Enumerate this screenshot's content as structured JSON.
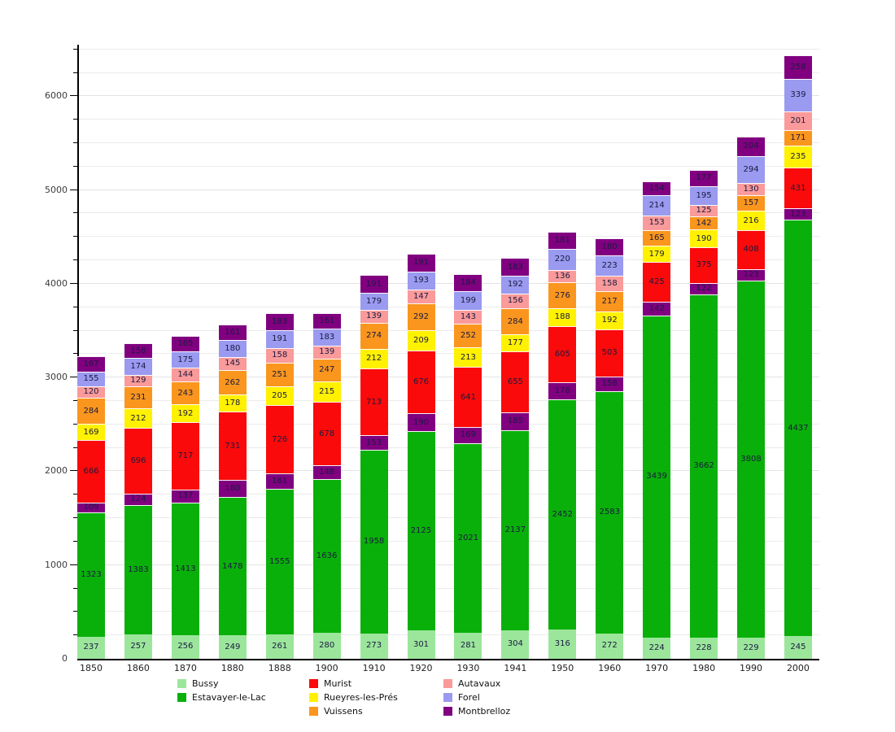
{
  "page": {
    "background": "#ffffff"
  },
  "chart_data": {
    "type": "bar",
    "stacked": true,
    "title": "",
    "xlabel": "",
    "ylabel": "",
    "grid": "horizontal",
    "categories": [
      "1850",
      "1860",
      "1870",
      "1880",
      "1888",
      "1900",
      "1910",
      "1920",
      "1930",
      "1941",
      "1950",
      "1960",
      "1970",
      "1980",
      "1990",
      "2000"
    ],
    "series": [
      {
        "name": "Bussy",
        "color": "#9CE69C",
        "values": [
          237,
          257,
          256,
          249,
          261,
          280,
          273,
          301,
          281,
          304,
          316,
          272,
          224,
          228,
          229,
          245
        ]
      },
      {
        "name": "Estavayer-le-Lac",
        "color": "#0AB00A",
        "values": [
          1323,
          1383,
          1413,
          1478,
          1555,
          1636,
          1958,
          2125,
          2021,
          2137,
          2452,
          2583,
          3439,
          3662,
          3808,
          4437
        ]
      },
      {
        "name": "(unlabeled)",
        "color": "#800080",
        "values": [
          109,
          124,
          137,
          180,
          161,
          148,
          153,
          190,
          169,
          185,
          178,
          158,
          142,
          122,
          123,
          123
        ]
      },
      {
        "name": "Murist",
        "color": "#FA0A0A",
        "values": [
          666,
          696,
          717,
          731,
          726,
          678,
          713,
          676,
          641,
          655,
          605,
          503,
          425,
          375,
          408,
          431
        ]
      },
      {
        "name": "Rueyres-les-Prés",
        "color": "#FFF100",
        "values": [
          169,
          212,
          192,
          178,
          205,
          215,
          212,
          209,
          213,
          177,
          188,
          192,
          179,
          190,
          216,
          235
        ]
      },
      {
        "name": "Vuissens",
        "color": "#FA961E",
        "values": [
          284,
          231,
          243,
          262,
          251,
          247,
          274,
          292,
          252,
          284,
          276,
          217,
          165,
          142,
          157,
          171
        ]
      },
      {
        "name": "Autavaux",
        "color": "#FA9A9A",
        "values": [
          120,
          129,
          144,
          145,
          158,
          139,
          139,
          147,
          143,
          156,
          136,
          158,
          153,
          125,
          130,
          201
        ]
      },
      {
        "name": "Forel",
        "color": "#9A9AF0",
        "values": [
          155,
          174,
          175,
          180,
          191,
          183,
          179,
          193,
          199,
          192,
          220,
          223,
          214,
          195,
          294,
          339
        ]
      },
      {
        "name": "Montbrelloz",
        "color": "#800080",
        "values": [
          167,
          158,
          165,
          161,
          183,
          161,
          191,
          191,
          184,
          183,
          181,
          180,
          154,
          177,
          204,
          258
        ]
      }
    ],
    "value_labels_shown": true,
    "value_label_color": "#1a1a40",
    "y_axis": {
      "min": 0,
      "max": 6550,
      "major_tick_interval": 1000,
      "minor_tick_interval": 250,
      "tick_labels": [
        "0",
        "1000",
        "2000",
        "3000",
        "4000",
        "5000",
        "6000"
      ]
    },
    "legend": {
      "position": "bottom",
      "columns": [
        [
          {
            "label": "Bussy",
            "color": "#9CE69C"
          },
          {
            "label": "Estavayer-le-Lac",
            "color": "#0AB00A"
          }
        ],
        [
          {
            "label": "Murist",
            "color": "#FA0A0A"
          },
          {
            "label": "Rueyres-les-Prés",
            "color": "#FFF100"
          },
          {
            "label": "Vuissens",
            "color": "#FA961E"
          }
        ],
        [
          {
            "label": "Autavaux",
            "color": "#FA9A9A"
          },
          {
            "label": "Forel",
            "color": "#9A9AF0"
          },
          {
            "label": "Montbrelloz",
            "color": "#800080"
          }
        ]
      ]
    }
  }
}
